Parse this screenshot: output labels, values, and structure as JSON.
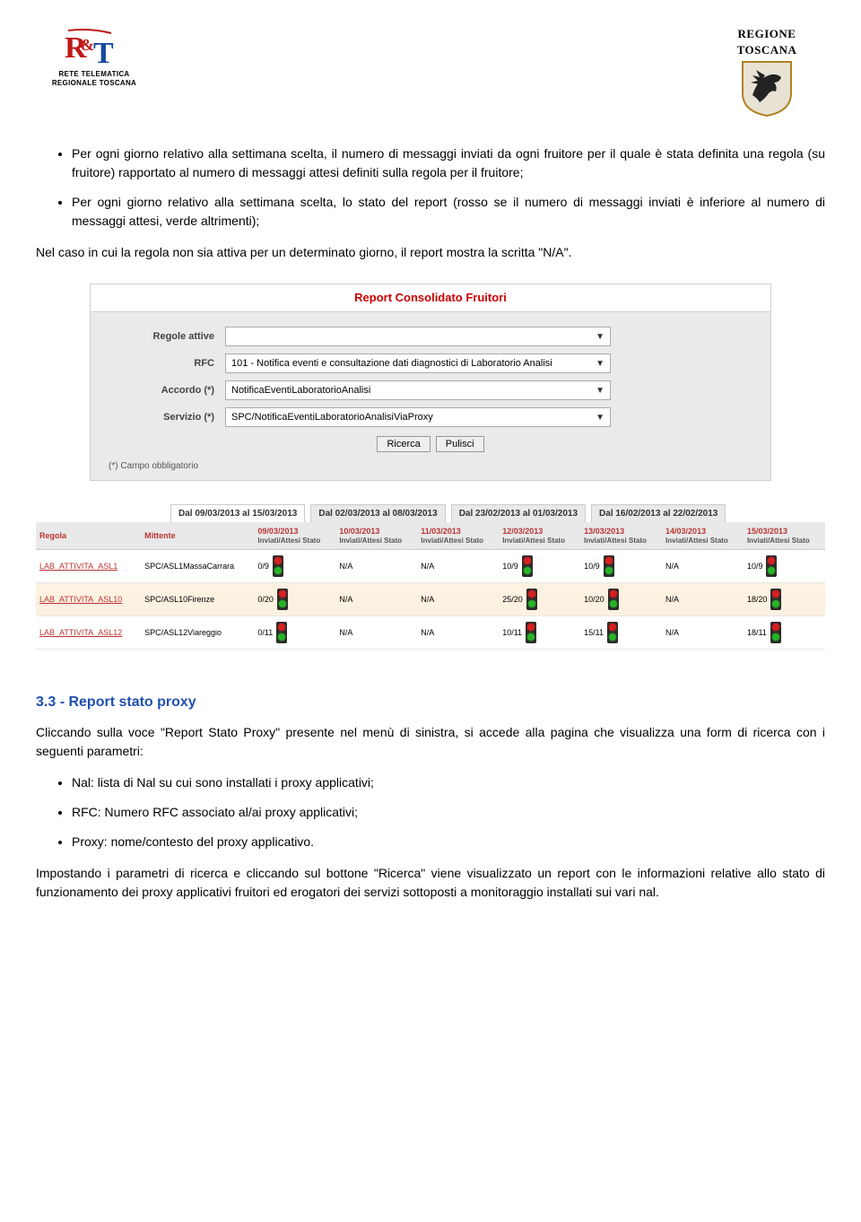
{
  "header": {
    "left_logo": {
      "line1": "RETE TELEMATICA",
      "line2": "REGIONALE TOSCANA",
      "icon_colors": {
        "r": "#c01818",
        "t": "#1848a0"
      }
    },
    "right_logo": {
      "line1": "REGIONE",
      "line2": "TOSCANA",
      "shield_border": "#b08020",
      "shield_field": "#d8d0c0",
      "horse": "#222222"
    }
  },
  "paragraphs": {
    "bullets_top": [
      "Per ogni giorno relativo alla settimana scelta, il numero di messaggi inviati da ogni fruitore per il quale è stata definita una regola (su fruitore) rapportato al numero di messaggi attesi definiti sulla regola per il fruitore;",
      "Per ogni giorno relativo alla settimana scelta, lo stato del report (rosso se il numero di messaggi inviati è inferiore al numero di messaggi attesi, verde altrimenti);"
    ],
    "after_bullets": "Nel caso in cui la regola non sia attiva per un determinato giorno, il report mostra la scritta \"N/A\"."
  },
  "form": {
    "title": "Report Consolidato Fruitori",
    "rows": [
      {
        "label": "Regole attive",
        "value": ""
      },
      {
        "label": "RFC",
        "value": "101 - Notifica eventi e consultazione dati diagnostici di Laboratorio Analisi"
      },
      {
        "label": "Accordo (*)",
        "value": "NotificaEventiLaboratorioAnalisi"
      },
      {
        "label": "Servizio (*)",
        "value": "SPC/NotificaEventiLaboratorioAnalisiViaProxy"
      }
    ],
    "buttons": {
      "search": "Ricerca",
      "clear": "Pulisci"
    },
    "foot": "(*) Campo obbligatorio"
  },
  "date_tabs": [
    {
      "label": "Dal 09/03/2013 al 15/03/2013",
      "active": true
    },
    {
      "label": "Dal 02/03/2013 al 08/03/2013",
      "active": false
    },
    {
      "label": "Dal 23/02/2013 al 01/03/2013",
      "active": false
    },
    {
      "label": "Dal 16/02/2013 al 22/02/2013",
      "active": false
    }
  ],
  "table": {
    "col_headers": {
      "regola": "Regola",
      "mittente": "Mittente"
    },
    "day_headers": [
      {
        "date": "09/03/2013",
        "sub": "Inviati/Attesi  Stato"
      },
      {
        "date": "10/03/2013",
        "sub": "Inviati/Attesi  Stato"
      },
      {
        "date": "11/03/2013",
        "sub": "Inviati/Attesi  Stato"
      },
      {
        "date": "12/03/2013",
        "sub": "Inviati/Attesi  Stato"
      },
      {
        "date": "13/03/2013",
        "sub": "Inviati/Attesi  Stato"
      },
      {
        "date": "14/03/2013",
        "sub": "Inviati/Attesi  Stato"
      },
      {
        "date": "15/03/2013",
        "sub": "Inviati/Attesi  Stato"
      }
    ],
    "rows": [
      {
        "regola": "LAB_ATTIVITA_ASL1",
        "mittente": "SPC/ASL1MassaCarrara",
        "cells": [
          {
            "val": "0/9",
            "light": "rg"
          },
          {
            "val": "N/A",
            "light": null
          },
          {
            "val": "N/A",
            "light": null
          },
          {
            "val": "10/9",
            "light": "rg"
          },
          {
            "val": "10/9",
            "light": "rg"
          },
          {
            "val": "N/A",
            "light": null
          },
          {
            "val": "10/9",
            "light": "rg"
          }
        ]
      },
      {
        "regola": "LAB_ATTIVITA_ASL10",
        "mittente": "SPC/ASL10Firenze",
        "cells": [
          {
            "val": "0/20",
            "light": "rg"
          },
          {
            "val": "N/A",
            "light": null
          },
          {
            "val": "N/A",
            "light": null
          },
          {
            "val": "25/20",
            "light": "rg"
          },
          {
            "val": "10/20",
            "light": "rg"
          },
          {
            "val": "N/A",
            "light": null
          },
          {
            "val": "18/20",
            "light": "rg"
          }
        ]
      },
      {
        "regola": "LAB_ATTIVITA_ASL12",
        "mittente": "SPC/ASL12Viareggio",
        "cells": [
          {
            "val": "0/11",
            "light": "rg"
          },
          {
            "val": "N/A",
            "light": null
          },
          {
            "val": "N/A",
            "light": null
          },
          {
            "val": "10/11",
            "light": "rg"
          },
          {
            "val": "15/11",
            "light": "rg"
          },
          {
            "val": "N/A",
            "light": null
          },
          {
            "val": "18/11",
            "light": "rg"
          }
        ]
      }
    ]
  },
  "section_proxy": {
    "heading": "3.3 - Report stato proxy",
    "intro": "Cliccando sulla voce \"Report Stato Proxy\" presente nel menù di sinistra, si accede alla pagina che visualizza una form di ricerca con i seguenti parametri:",
    "bullets": [
      "Nal: lista di Nal su cui sono installati i proxy applicativi;",
      "RFC: Numero RFC associato al/ai proxy applicativi;",
      "Proxy: nome/contesto del proxy applicativo."
    ],
    "closing": "Impostando i parametri di ricerca e cliccando sul bottone \"Ricerca\" viene visualizzato un report con le informazioni relative allo stato di funzionamento dei proxy applicativi fruitori ed erogatori dei servizi sottoposti a monitoraggio installati sui vari nal."
  }
}
